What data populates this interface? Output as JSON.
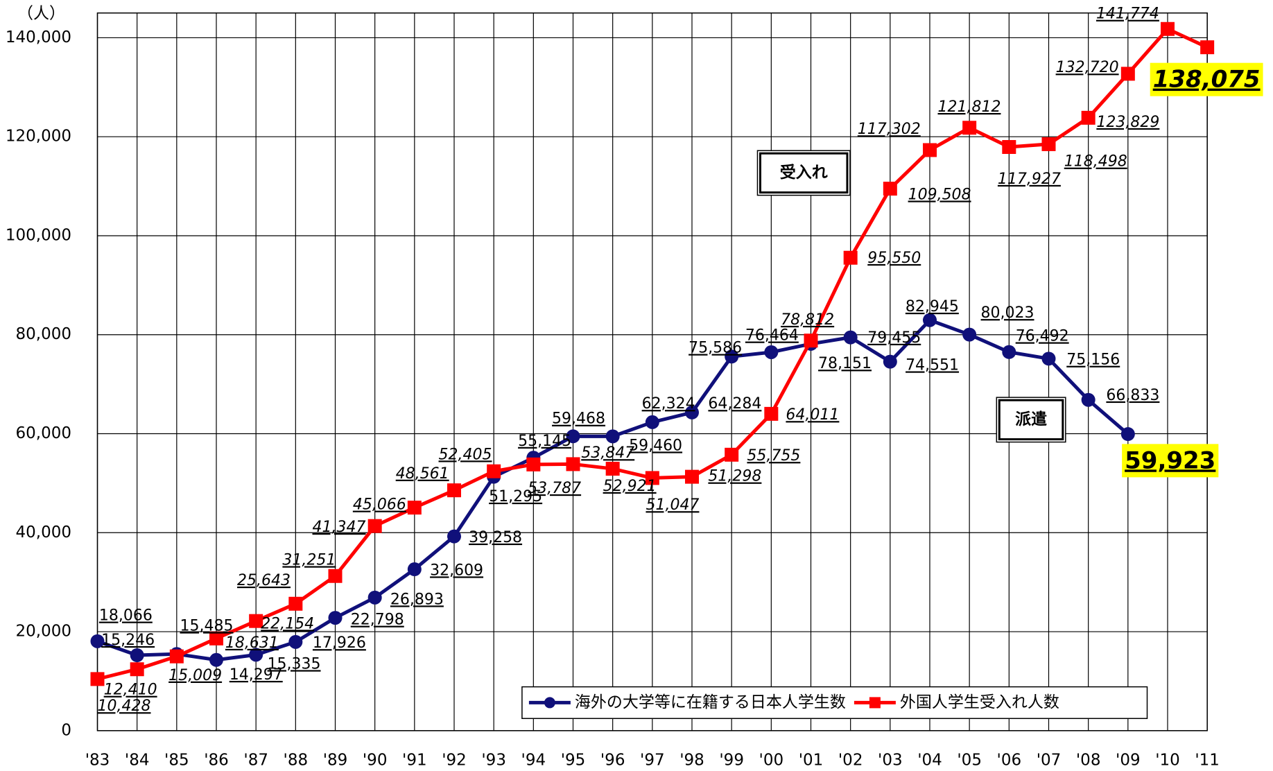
{
  "chart_data": {
    "type": "line",
    "y_unit": "（人）",
    "categories": [
      "'83",
      "'84",
      "'85",
      "'86",
      "'87",
      "'88",
      "'89",
      "'90",
      "'91",
      "'92",
      "'93",
      "'94",
      "'95",
      "'96",
      "'97",
      "'98",
      "'99",
      "'00",
      "'01",
      "'02",
      "'03",
      "'04",
      "'05",
      "'06",
      "'07",
      "'08",
      "'09",
      "'10",
      "'11"
    ],
    "series": [
      {
        "name": "海外の大学等に在籍する日本人学生数",
        "color": "#10107a",
        "marker": "circle",
        "values": [
          18066,
          15246,
          15485,
          14297,
          15335,
          17926,
          22798,
          26893,
          32609,
          39258,
          51295,
          55145,
          59468,
          59460,
          62324,
          64284,
          75586,
          76464,
          78151,
          79455,
          74551,
          82945,
          80023,
          76492,
          75156,
          66833,
          59923,
          null,
          null
        ],
        "value_labels": [
          "18,066",
          "15,246",
          "15,485",
          "14,297",
          "15,335",
          "17,926",
          "22,798",
          "26,893",
          "32,609",
          "39,258",
          "51,295",
          "55,145",
          "59,468",
          "59,460",
          "62,324",
          "64,284",
          "75,586",
          "76,464",
          "78,151",
          "79,455",
          "74,551",
          "82,945",
          "80,023",
          "76,492",
          "75,156",
          "66,833",
          "59,923",
          null,
          null
        ]
      },
      {
        "name": "外国人学生受入れ人数",
        "color": "#ff0000",
        "marker": "square",
        "values": [
          10428,
          12410,
          15009,
          18631,
          22154,
          25643,
          31251,
          41347,
          45066,
          48561,
          52405,
          53787,
          53847,
          52921,
          51047,
          51298,
          55755,
          64011,
          78812,
          95550,
          109508,
          117302,
          121812,
          117927,
          118498,
          123829,
          132720,
          141774,
          138075
        ],
        "value_labels": [
          "10,428",
          "12,410",
          "15,009",
          "18,631",
          "22,154",
          "25,643",
          "31,251",
          "41,347",
          "45,066",
          "48,561",
          "52,405",
          "53,787",
          "53,847",
          "52,921",
          "51,047",
          "51,298",
          "55,755",
          "64,011",
          "78,812",
          "95,550",
          "109,508",
          "117,302",
          "121,812",
          "117,927",
          "118,498",
          "123,829",
          "132,720",
          "141,774",
          "138,075"
        ]
      }
    ],
    "annotations": [
      "受入れ",
      "派遣"
    ],
    "ylim": [
      0,
      145000
    ],
    "yticks": [
      0,
      {
        "value": 20000,
        "label": "20,000"
      },
      {
        "value": 40000,
        "label": "40,000"
      },
      {
        "value": 60000,
        "label": "60,000"
      },
      {
        "value": 80000,
        "label": "80,000"
      },
      {
        "value": 100000,
        "label": "100,000"
      },
      {
        "value": 120000,
        "label": "120,000"
      },
      {
        "value": 140000,
        "label": "140,000"
      }
    ],
    "grid": true,
    "legend": "bottom-right"
  }
}
